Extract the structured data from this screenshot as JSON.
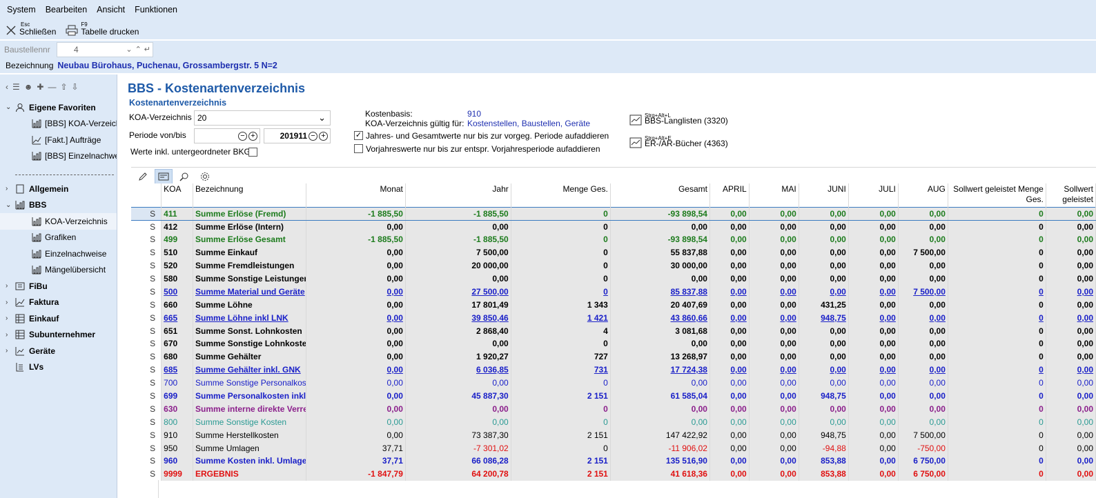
{
  "menu": [
    "System",
    "Bearbeiten",
    "Ansicht",
    "Funktionen"
  ],
  "toolbar": {
    "close": {
      "key": "Esc",
      "label": "Schließen"
    },
    "print": {
      "key": "F9",
      "label": "Tabelle drucken"
    }
  },
  "baustelle": {
    "label": "Baustellennr",
    "value": "4"
  },
  "bezeichnung": {
    "label": "Bezeichnung",
    "value": "Neubau Bürohaus, Puchenau, Grossambergstr. 5  N=2"
  },
  "sidebar": {
    "favorites_label": "Eigene Favoriten",
    "favorites": [
      "[BBS] KOA-Verzeichnis",
      "[Fakt.] Aufträge",
      "[BBS] Einzelnachweise"
    ],
    "modules": [
      {
        "label": "Allgemein",
        "expanded": false
      },
      {
        "label": "BBS",
        "expanded": true,
        "children": [
          "KOA-Verzeichnis",
          "Grafiken",
          "Einzelnachweise",
          "Mängelübersicht"
        ]
      },
      {
        "label": "FiBu",
        "expanded": false
      },
      {
        "label": "Faktura",
        "expanded": false
      },
      {
        "label": "Einkauf",
        "expanded": false
      },
      {
        "label": "Subunternehmer",
        "expanded": false
      },
      {
        "label": "Geräte",
        "expanded": false
      },
      {
        "label": "LVs",
        "expanded": null
      }
    ]
  },
  "page": {
    "title": "BBS - Kostenartenverzeichnis",
    "subtitle": "Kostenartenverzeichnis",
    "koa_label": "KOA-Verzeichnis",
    "koa_value": "20",
    "periode_label": "Periode von/bis",
    "periode_from": "",
    "periode_to": "201911",
    "werte_label": "Werte inkl. untergeordneter BKG",
    "kostenbasis_label": "Kostenbasis:",
    "kostenbasis_value": "910",
    "gueltig_label": "KOA-Verzeichnis gültig für:",
    "gueltig_value": "Kostenstellen, Baustellen, Geräte",
    "check1": "Jahres- und Gesamtwerte nur bis zur vorgeg. Periode aufaddieren",
    "check2": "Vorjahreswerte nur bis zur entspr. Vorjahresperiode aufaddieren",
    "link1": {
      "key": "Strg+Alt+L",
      "label": "BBS-Langlisten (3320)"
    },
    "link2": {
      "key": "Strg+Alt+E",
      "label": "ER-/AR-Bücher (4363)"
    }
  },
  "colors": {
    "accent": "#1e5aa8",
    "green": "#1c7b1c",
    "blue": "#1a20c8",
    "purple": "#8b1f8b",
    "teal": "#2a9a93",
    "red": "#e01010"
  },
  "columns": [
    "",
    "KOA",
    "Bezeichnung",
    "Monat",
    "Jahr",
    "Menge Ges.",
    "Gesamt",
    "APRIL",
    "MAI",
    "JUNI",
    "JULI",
    "AUG",
    "Sollwert geleistet Menge Ges.",
    "Sollwert geleistet"
  ],
  "rows": [
    {
      "s": "S",
      "koa": "411",
      "bez": "Summe Erlöse (Fremd)",
      "v": [
        "-1 885,50",
        "-1 885,50",
        "0",
        "-93 898,54",
        "0,00",
        "0,00",
        "0,00",
        "0,00",
        "0,00",
        "0",
        "0,00"
      ],
      "style": "bold c-green",
      "first": true
    },
    {
      "s": "S",
      "koa": "412",
      "bez": "Summe Erlöse (Intern)",
      "v": [
        "0,00",
        "0,00",
        "0",
        "0,00",
        "0,00",
        "0,00",
        "0,00",
        "0,00",
        "0,00",
        "0",
        "0,00"
      ],
      "style": "bold"
    },
    {
      "s": "S",
      "koa": "499",
      "bez": "Summe Erlöse Gesamt",
      "v": [
        "-1 885,50",
        "-1 885,50",
        "0",
        "-93 898,54",
        "0,00",
        "0,00",
        "0,00",
        "0,00",
        "0,00",
        "0",
        "0,00"
      ],
      "style": "bold c-green"
    },
    {
      "s": "S",
      "koa": "510",
      "bez": "Summe Einkauf",
      "v": [
        "0,00",
        "7 500,00",
        "0",
        "55 837,88",
        "0,00",
        "0,00",
        "0,00",
        "0,00",
        "7 500,00",
        "0",
        "0,00"
      ],
      "style": "bold"
    },
    {
      "s": "S",
      "koa": "520",
      "bez": "Summe Fremdleistungen",
      "v": [
        "0,00",
        "20 000,00",
        "0",
        "30 000,00",
        "0,00",
        "0,00",
        "0,00",
        "0,00",
        "0,00",
        "0",
        "0,00"
      ],
      "style": "bold"
    },
    {
      "s": "S",
      "koa": "580",
      "bez": "Summe Sonstige Leistungen",
      "v": [
        "0,00",
        "0,00",
        "0",
        "0,00",
        "0,00",
        "0,00",
        "0,00",
        "0,00",
        "0,00",
        "0",
        "0,00"
      ],
      "style": "bold"
    },
    {
      "s": "S",
      "koa": "500",
      "bez": "Summe Material und Geräte",
      "v": [
        "0,00",
        "27 500,00",
        "0",
        "85 837,88",
        "0,00",
        "0,00",
        "0,00",
        "0,00",
        "7 500,00",
        "0",
        "0,00"
      ],
      "style": "bold c-blue ul"
    },
    {
      "s": "S",
      "koa": "660",
      "bez": "Summe Löhne",
      "v": [
        "0,00",
        "17 801,49",
        "1 343",
        "20 407,69",
        "0,00",
        "0,00",
        "431,25",
        "0,00",
        "0,00",
        "0",
        "0,00"
      ],
      "style": "bold"
    },
    {
      "s": "S",
      "koa": "665",
      "bez": "Summe Löhne inkl LNK",
      "v": [
        "0,00",
        "39 850,46",
        "1 421",
        "43 860,66",
        "0,00",
        "0,00",
        "948,75",
        "0,00",
        "0,00",
        "0",
        "0,00"
      ],
      "style": "bold c-blue ul"
    },
    {
      "s": "S",
      "koa": "651",
      "bez": "Summe Sonst. Lohnkosten",
      "v": [
        "0,00",
        "2 868,40",
        "4",
        "3 081,68",
        "0,00",
        "0,00",
        "0,00",
        "0,00",
        "0,00",
        "0",
        "0,00"
      ],
      "style": "bold"
    },
    {
      "s": "S",
      "koa": "670",
      "bez": "Summe Sonstige Lohnkosten",
      "v": [
        "0,00",
        "0,00",
        "0",
        "0,00",
        "0,00",
        "0,00",
        "0,00",
        "0,00",
        "0,00",
        "0",
        "0,00"
      ],
      "style": "bold"
    },
    {
      "s": "S",
      "koa": "680",
      "bez": "Summe Gehälter",
      "v": [
        "0,00",
        "1 920,27",
        "727",
        "13 268,97",
        "0,00",
        "0,00",
        "0,00",
        "0,00",
        "0,00",
        "0",
        "0,00"
      ],
      "style": "bold"
    },
    {
      "s": "S",
      "koa": "685",
      "bez": "Summe Gehälter inkl. GNK",
      "v": [
        "0,00",
        "6 036,85",
        "731",
        "17 724,38",
        "0,00",
        "0,00",
        "0,00",
        "0,00",
        "0,00",
        "0",
        "0,00"
      ],
      "style": "bold c-blue ul"
    },
    {
      "s": "S",
      "koa": "700",
      "bez": "Summe Sonstige Personalkosten",
      "v": [
        "0,00",
        "0,00",
        "0",
        "0,00",
        "0,00",
        "0,00",
        "0,00",
        "0,00",
        "0,00",
        "0",
        "0,00"
      ],
      "style": "c-blue"
    },
    {
      "s": "S",
      "koa": "699",
      "bez": "Summe Personalkosten inkl",
      "v": [
        "0,00",
        "45 887,30",
        "2 151",
        "61 585,04",
        "0,00",
        "0,00",
        "948,75",
        "0,00",
        "0,00",
        "0",
        "0,00"
      ],
      "style": "bold c-blue"
    },
    {
      "s": "S",
      "koa": "630",
      "bez": "Summe interne direkte Verrechnung",
      "v": [
        "0,00",
        "0,00",
        "0",
        "0,00",
        "0,00",
        "0,00",
        "0,00",
        "0,00",
        "0,00",
        "0",
        "0,00"
      ],
      "style": "bold c-purple"
    },
    {
      "s": "S",
      "koa": "800",
      "bez": "Summe Sonstige Kosten",
      "v": [
        "0,00",
        "0,00",
        "0",
        "0,00",
        "0,00",
        "0,00",
        "0,00",
        "0,00",
        "0,00",
        "0",
        "0,00"
      ],
      "style": "c-teal"
    },
    {
      "s": "S",
      "koa": "910",
      "bez": "Summe Herstellkosten",
      "v": [
        "0,00",
        "73 387,30",
        "2 151",
        "147 422,92",
        "0,00",
        "0,00",
        "948,75",
        "0,00",
        "7 500,00",
        "0",
        "0,00"
      ],
      "style": ""
    },
    {
      "s": "S",
      "koa": "950",
      "bez": "Summe Umlagen",
      "v": [
        "37,71",
        "-7 301,02",
        "0",
        "-11 906,02",
        "0,00",
        "0,00",
        "-94,88",
        "0,00",
        "-750,00",
        "0",
        "0,00"
      ],
      "style": "",
      "neg": true
    },
    {
      "s": "S",
      "koa": "960",
      "bez": "Summe Kosten inkl. Umlagen",
      "v": [
        "37,71",
        "66 086,28",
        "2 151",
        "135 516,90",
        "0,00",
        "0,00",
        "853,88",
        "0,00",
        "6 750,00",
        "0",
        "0,00"
      ],
      "style": "bold c-blue"
    },
    {
      "s": "S",
      "koa": "9999",
      "bez": "ERGEBNIS",
      "v": [
        "-1 847,79",
        "64 200,78",
        "2 151",
        "41 618,36",
        "0,00",
        "0,00",
        "853,88",
        "0,00",
        "6 750,00",
        "0",
        "0,00"
      ],
      "style": "bold c-red"
    }
  ]
}
